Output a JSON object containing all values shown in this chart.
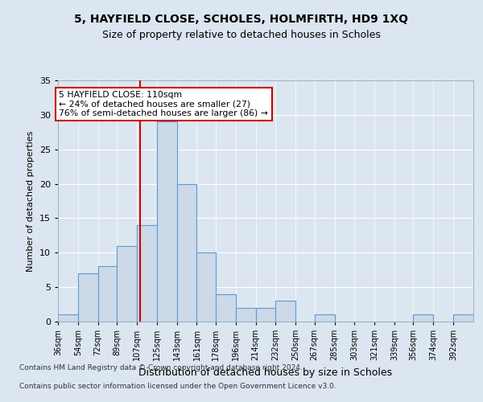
{
  "title1": "5, HAYFIELD CLOSE, SCHOLES, HOLMFIRTH, HD9 1XQ",
  "title2": "Size of property relative to detached houses in Scholes",
  "xlabel": "Distribution of detached houses by size in Scholes",
  "ylabel": "Number of detached properties",
  "bin_labels": [
    "36sqm",
    "54sqm",
    "72sqm",
    "89sqm",
    "107sqm",
    "125sqm",
    "143sqm",
    "161sqm",
    "178sqm",
    "196sqm",
    "214sqm",
    "232sqm",
    "250sqm",
    "267sqm",
    "285sqm",
    "303sqm",
    "321sqm",
    "339sqm",
    "356sqm",
    "374sqm",
    "392sqm"
  ],
  "bin_edges": [
    36,
    54,
    72,
    89,
    107,
    125,
    143,
    161,
    178,
    196,
    214,
    232,
    250,
    267,
    285,
    303,
    321,
    339,
    356,
    374,
    392,
    410
  ],
  "bar_heights": [
    1,
    7,
    8,
    11,
    14,
    29,
    20,
    10,
    4,
    2,
    2,
    3,
    0,
    1,
    0,
    0,
    0,
    0,
    1,
    0,
    1
  ],
  "bar_color": "#ccd9e8",
  "bar_edgecolor": "#5b9bd5",
  "property_value": 110,
  "vline_color": "#cc0000",
  "annotation_line1": "5 HAYFIELD CLOSE: 110sqm",
  "annotation_line2": "← 24% of detached houses are smaller (27)",
  "annotation_line3": "76% of semi-detached houses are larger (86) →",
  "annotation_box_edgecolor": "#cc0000",
  "annotation_box_facecolor": "#ffffff",
  "ylim": [
    0,
    35
  ],
  "yticks": [
    0,
    5,
    10,
    15,
    20,
    25,
    30,
    35
  ],
  "footer1": "Contains HM Land Registry data © Crown copyright and database right 2024.",
  "footer2": "Contains public sector information licensed under the Open Government Licence v3.0.",
  "bg_color": "#dce6f0",
  "plot_bg_color": "#dce6f0"
}
